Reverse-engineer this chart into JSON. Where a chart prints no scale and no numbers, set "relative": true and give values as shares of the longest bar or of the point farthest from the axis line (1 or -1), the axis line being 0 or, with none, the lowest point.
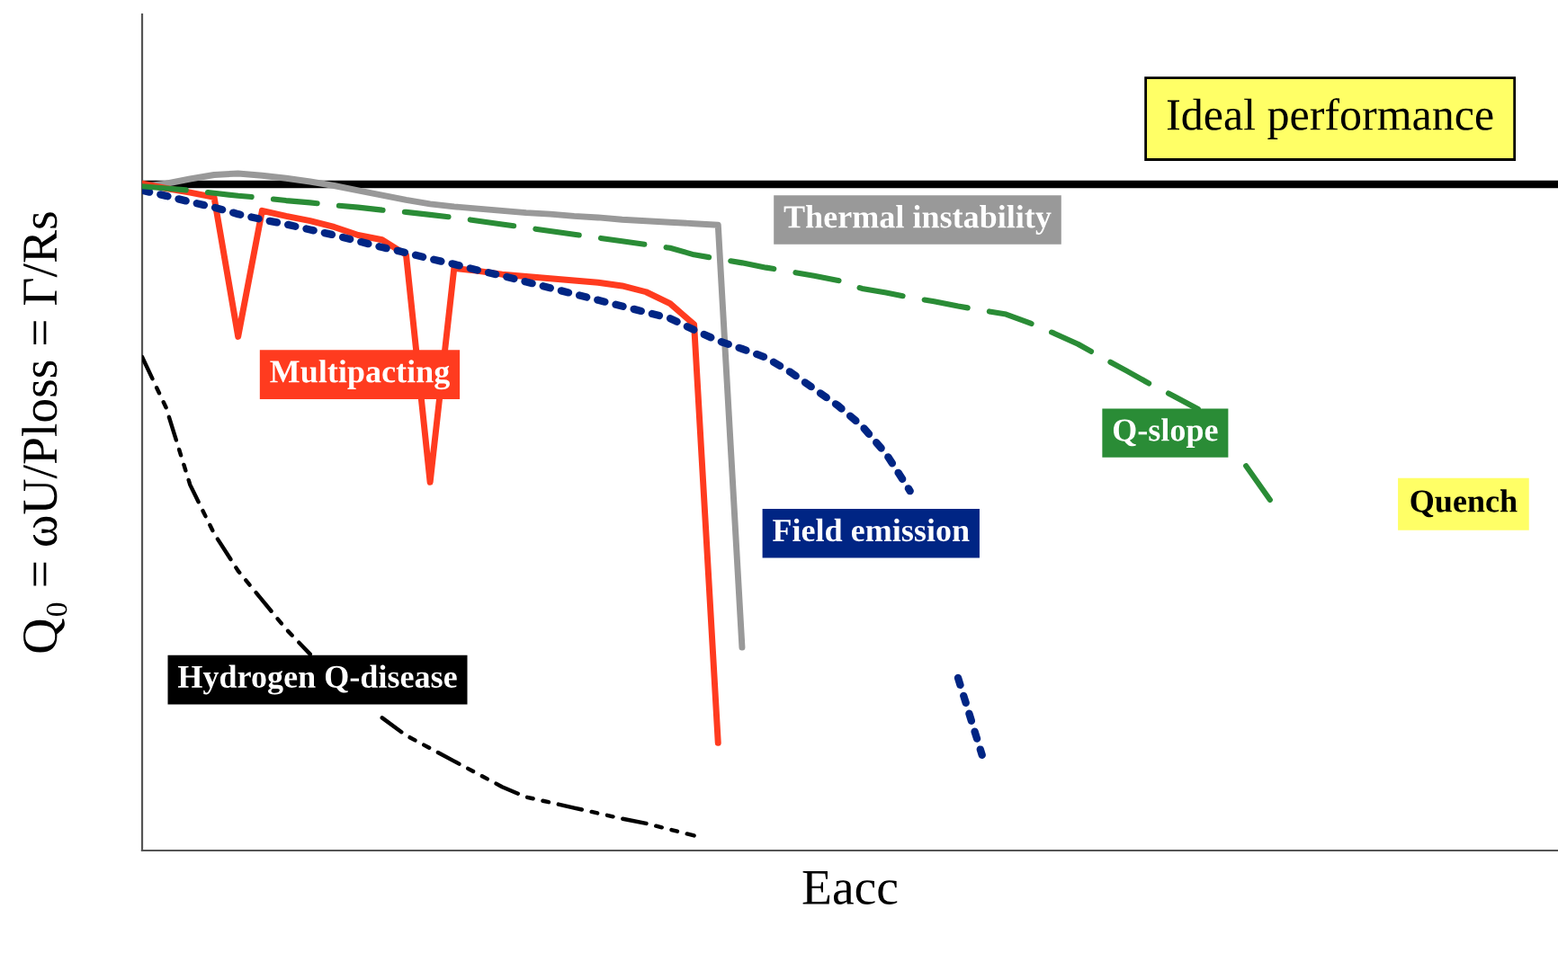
{
  "chart_data": {
    "type": "line",
    "relative": true,
    "xlabel": "Eacc",
    "ylabel": "Q₀ = ωU/Ploss = Γ/Rs",
    "categories": [
      null,
      null,
      null,
      null,
      null,
      null,
      null,
      null,
      null,
      null,
      null,
      null,
      null,
      null,
      null,
      null,
      null,
      null,
      null,
      null,
      null,
      null,
      null,
      null,
      null,
      null,
      null,
      null,
      null,
      null,
      null,
      null,
      null,
      null,
      null,
      null,
      null,
      null,
      null,
      null,
      null,
      null,
      null,
      null,
      null,
      null,
      null,
      null,
      null,
      null,
      null,
      null,
      null,
      null,
      null,
      null,
      null,
      null,
      null,
      null
    ],
    "ref_lines": [
      {
        "axis": "y",
        "value": 0.984,
        "label": "Ideal performance",
        "color": "#000000"
      }
    ],
    "annotations": [
      "Quench"
    ],
    "series": [
      {
        "name": "Thermal instability",
        "color": "#999999",
        "line_style": "solid",
        "values": [
          0.981,
          0.985,
          0.992,
          0.998,
          1.0,
          0.997,
          0.993,
          0.988,
          0.982,
          0.975,
          0.968,
          0.961,
          0.955,
          0.951,
          0.948,
          0.945,
          0.942,
          0.94,
          0.937,
          0.935,
          0.932,
          0.93,
          0.928,
          0.926,
          0.924,
          0.3,
          null,
          null,
          null,
          null,
          null,
          null,
          null,
          null,
          null,
          null,
          null,
          null,
          null,
          null,
          null,
          null,
          null,
          null,
          null,
          null,
          null,
          null,
          null,
          null,
          null,
          null,
          null,
          null,
          null,
          null,
          null,
          null,
          null,
          null
        ]
      },
      {
        "name": "Multipacting",
        "color": "#ff3b1f",
        "line_style": "solid",
        "values": [
          0.985,
          0.978,
          0.972,
          0.965,
          0.759,
          0.945,
          0.937,
          0.93,
          0.921,
          0.909,
          0.902,
          0.88,
          0.544,
          0.86,
          0.856,
          0.851,
          0.848,
          0.845,
          0.842,
          0.839,
          0.834,
          0.825,
          0.808,
          0.777,
          0.159,
          null,
          null,
          null,
          null,
          null,
          null,
          null,
          null,
          null,
          null,
          null,
          null,
          null,
          null,
          null,
          null,
          null,
          null,
          null,
          null,
          null,
          null,
          null,
          null,
          null,
          null,
          null,
          null,
          null,
          null,
          null,
          null,
          null,
          null,
          null
        ]
      },
      {
        "name": "Field emission",
        "color": "#002584",
        "line_style": "dotted",
        "values": [
          0.975,
          0.967,
          0.958,
          0.95,
          0.94,
          0.932,
          0.925,
          0.917,
          0.909,
          0.9,
          0.891,
          0.883,
          0.874,
          0.866,
          0.857,
          0.849,
          0.84,
          0.831,
          0.822,
          0.813,
          0.804,
          0.795,
          0.786,
          0.769,
          0.753,
          0.741,
          0.728,
          0.707,
          0.682,
          0.657,
          0.627,
          0.586,
          0.531,
          null,
          0.255,
          0.141,
          null,
          null,
          null,
          null,
          null,
          null,
          null,
          null,
          null,
          null,
          null,
          null,
          null,
          null,
          null,
          null,
          null,
          null,
          null,
          null,
          null,
          null,
          null,
          null
        ]
      },
      {
        "name": "Q-slope",
        "color": "#2a8c36",
        "line_style": "dashed",
        "values": [
          0.981,
          0.978,
          0.975,
          0.971,
          0.967,
          0.964,
          0.96,
          0.957,
          0.953,
          0.95,
          0.946,
          0.943,
          0.939,
          0.935,
          0.93,
          0.925,
          0.92,
          0.915,
          0.91,
          0.905,
          0.9,
          0.895,
          0.89,
          0.88,
          0.874,
          0.868,
          0.861,
          0.855,
          0.849,
          0.842,
          0.83,
          0.824,
          0.817,
          0.811,
          0.804,
          0.798,
          0.792,
          0.779,
          0.764,
          0.748,
          0.728,
          0.709,
          0.689,
          0.671,
          0.652,
          null,
          0.568,
          0.518,
          null,
          null,
          null,
          null,
          null,
          null,
          null,
          null,
          null,
          null,
          null,
          null
        ]
      },
      {
        "name": "Hydrogen Q-disease",
        "color": "#000000",
        "line_style": "dashdotdot",
        "values": [
          0.729,
          0.654,
          0.54,
          0.468,
          0.413,
          0.37,
          0.327,
          0.29,
          null,
          null,
          0.196,
          0.17,
          0.151,
          0.132,
          0.113,
          0.094,
          0.079,
          0.071,
          0.063,
          0.055,
          0.047,
          0.04,
          0.031,
          0.022,
          null,
          null,
          null,
          null,
          null,
          null,
          null,
          null,
          null,
          null,
          null,
          null,
          null,
          null,
          null,
          null,
          null,
          null,
          null,
          null,
          null,
          null,
          null,
          null,
          null,
          null,
          null,
          null,
          null,
          null,
          null,
          null,
          null,
          null,
          null,
          null
        ]
      }
    ]
  }
}
